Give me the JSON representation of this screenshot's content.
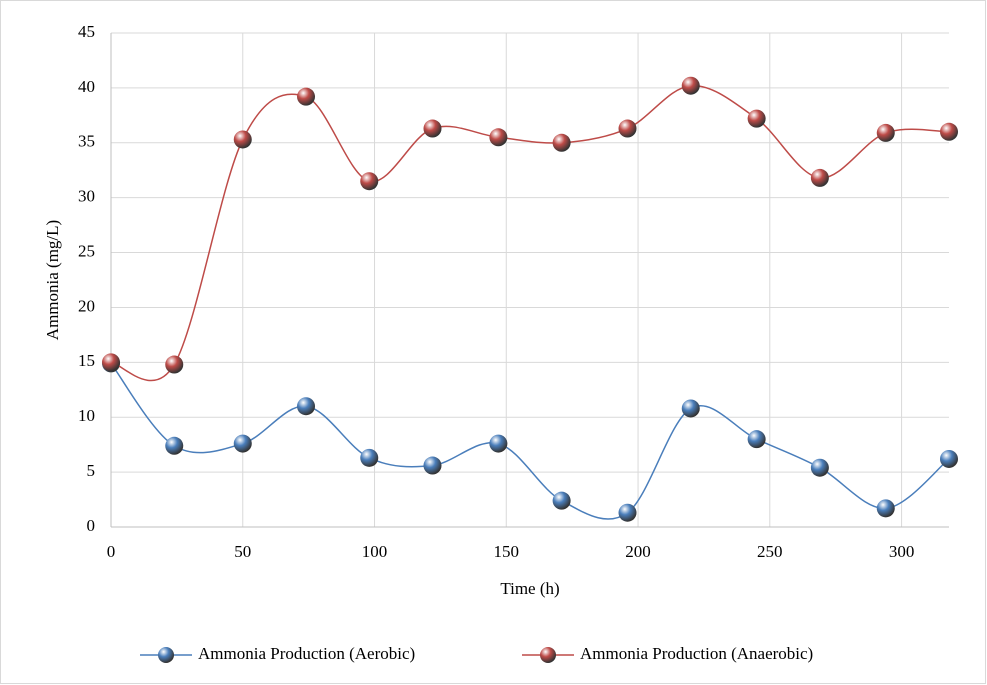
{
  "chart_data": {
    "type": "line",
    "x_label": "Time (h)",
    "y_label": "Ammonia  (mg/L)",
    "x": [
      0,
      24,
      50,
      74,
      98,
      122,
      147,
      171,
      196,
      220,
      245,
      269,
      294,
      318
    ],
    "series": [
      {
        "name": "Ammonia Production (Aerobic)",
        "color": "#4a7ebb",
        "values": [
          14.9,
          7.4,
          7.6,
          11.0,
          6.3,
          5.6,
          7.6,
          2.4,
          1.3,
          10.8,
          8.0,
          5.4,
          1.7,
          6.2
        ]
      },
      {
        "name": "Ammonia Production (Anaerobic)",
        "color": "#be4b48",
        "values": [
          15.0,
          14.8,
          35.3,
          39.2,
          31.5,
          36.3,
          35.5,
          35.0,
          36.3,
          40.2,
          37.2,
          31.8,
          35.9,
          36.0
        ]
      }
    ],
    "xlim": [
      0,
      318
    ],
    "xticks": [
      0,
      50,
      100,
      150,
      200,
      250,
      300
    ],
    "ylim": [
      0,
      45
    ],
    "yticks": [
      0,
      5,
      10,
      15,
      20,
      25,
      30,
      35,
      40,
      45
    ],
    "grid": true,
    "smooth": true,
    "legend": "bottom"
  }
}
